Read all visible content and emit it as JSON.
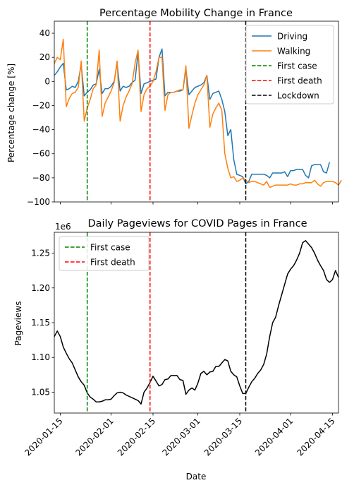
{
  "figure": {
    "xlabel": "Date",
    "colors": {
      "driving": "#1f77b4",
      "walking": "#ff7f0e",
      "first_case": "#008000",
      "first_death": "#ff0000",
      "lockdown": "#000000",
      "pageviews": "#000000"
    }
  },
  "chart_data": [
    {
      "type": "line",
      "title": "Percentage Mobility Change in France",
      "xlabel": "",
      "ylabel": "Percentage change [%]",
      "xlim": [
        "2020-01-13",
        "2020-04-17"
      ],
      "ylim": [
        -100,
        50
      ],
      "yticks": [
        40,
        20,
        0,
        -20,
        -40,
        -60,
        -80,
        -100
      ],
      "xticks": [
        "2020-01-15",
        "2020-02-01",
        "2020-02-15",
        "2020-03-01",
        "2020-03-15",
        "2020-04-01",
        "2020-04-15"
      ],
      "x_tick_labels_shown": false,
      "grid": false,
      "legend_position": "upper right",
      "x_start": "2020-01-13",
      "series": [
        {
          "name": "Driving",
          "color": "#1f77b4",
          "values": [
            5,
            8,
            12,
            15,
            -7,
            -6,
            -4,
            -5,
            0,
            14,
            -12,
            -9,
            -7,
            -3,
            -2,
            10,
            -10,
            -6,
            -6,
            -4,
            0,
            15,
            -8,
            -4,
            -5,
            -4,
            -1,
            1,
            24,
            -10,
            -2,
            -1,
            0,
            1,
            2,
            20,
            27,
            -12,
            -9,
            -9,
            -9,
            -8,
            -8,
            -7,
            10,
            -11,
            -8,
            -5,
            -4,
            -3,
            -1,
            5,
            -15,
            -10,
            -9,
            -8,
            -15,
            -25,
            -45,
            -40,
            -65,
            -77,
            -78,
            -79,
            -85,
            -83,
            -77,
            -77,
            -77,
            -77,
            -77,
            -78,
            -80,
            -76,
            -76,
            -76,
            -76,
            -75,
            -79,
            -74,
            -74,
            -73,
            -73,
            -73,
            -78,
            -80,
            -70,
            -69,
            -69,
            -69,
            -75,
            -76,
            -67
          ]
        },
        {
          "name": "Walking",
          "color": "#ff7f0e",
          "values": [
            15,
            20,
            18,
            35,
            -21,
            -14,
            -10,
            -9,
            -5,
            17,
            -33,
            -22,
            -15,
            -6,
            -3,
            26,
            -29,
            -18,
            -13,
            -8,
            -1,
            17,
            -33,
            -20,
            -13,
            -8,
            -2,
            15,
            26,
            -25,
            -11,
            -6,
            -4,
            0,
            8,
            20,
            20,
            -24,
            -11,
            -9,
            -9,
            -8,
            -7,
            -7,
            13,
            -39,
            -28,
            -18,
            -11,
            -7,
            -3,
            5,
            -38,
            -27,
            -22,
            -18,
            -24,
            -60,
            -72,
            -80,
            -79,
            -83,
            -82,
            -80,
            -82,
            -84,
            -83,
            -83,
            -84,
            -85,
            -86,
            -83,
            -88,
            -87,
            -86,
            -86,
            -86,
            -86,
            -86,
            -85,
            -86,
            -86,
            -85,
            -85,
            -84,
            -84,
            -84,
            -82,
            -85,
            -87,
            -84,
            -83,
            -83,
            -83,
            -84,
            -86,
            -82
          ]
        },
        {
          "name": "First case",
          "type": "vline",
          "x": "2020-01-24",
          "color": "#008000",
          "dash": true
        },
        {
          "name": "First death",
          "type": "vline",
          "x": "2020-02-14",
          "color": "#ff0000",
          "dash": true
        },
        {
          "name": "Lockdown",
          "type": "vline",
          "x": "2020-03-17",
          "color": "#000000",
          "dash": true
        }
      ]
    },
    {
      "type": "line",
      "title": "Daily Pageviews for COVID Pages in France",
      "xlabel": "Date",
      "ylabel": "Pageviews",
      "offset_label": "1e6",
      "xlim": [
        "2020-01-13",
        "2020-04-17"
      ],
      "ylim": [
        1.02,
        1.28
      ],
      "yticks": [
        1.05,
        1.1,
        1.15,
        1.2,
        1.25
      ],
      "xticks": [
        "2020-01-15",
        "2020-02-01",
        "2020-02-15",
        "2020-03-01",
        "2020-03-15",
        "2020-04-01",
        "2020-04-15"
      ],
      "grid": false,
      "legend_position": "upper left",
      "x_start": "2020-01-13",
      "series": [
        {
          "name": "",
          "color": "#000000",
          "values": [
            1.13,
            1.138,
            1.13,
            1.115,
            1.106,
            1.098,
            1.092,
            1.082,
            1.072,
            1.065,
            1.06,
            1.049,
            1.043,
            1.04,
            1.036,
            1.036,
            1.037,
            1.039,
            1.039,
            1.04,
            1.045,
            1.049,
            1.05,
            1.049,
            1.046,
            1.044,
            1.042,
            1.04,
            1.038,
            1.033,
            1.05,
            1.056,
            1.064,
            1.073,
            1.066,
            1.059,
            1.061,
            1.068,
            1.069,
            1.074,
            1.074,
            1.074,
            1.068,
            1.067,
            1.047,
            1.053,
            1.056,
            1.053,
            1.063,
            1.077,
            1.08,
            1.075,
            1.079,
            1.08,
            1.087,
            1.087,
            1.092,
            1.097,
            1.095,
            1.08,
            1.075,
            1.072,
            1.059,
            1.048,
            1.048,
            1.057,
            1.065,
            1.07,
            1.077,
            1.082,
            1.09,
            1.105,
            1.13,
            1.15,
            1.158,
            1.175,
            1.19,
            1.205,
            1.22,
            1.227,
            1.232,
            1.24,
            1.25,
            1.265,
            1.268,
            1.263,
            1.258,
            1.25,
            1.24,
            1.232,
            1.225,
            1.212,
            1.208,
            1.212,
            1.225,
            1.215
          ]
        },
        {
          "name": "First case",
          "type": "vline",
          "x": "2020-01-24",
          "color": "#008000",
          "dash": true
        },
        {
          "name": "First death",
          "type": "vline",
          "x": "2020-02-14",
          "color": "#ff0000",
          "dash": true
        },
        {
          "name": "",
          "type": "vline",
          "x": "2020-03-17",
          "color": "#000000",
          "dash": true
        }
      ]
    }
  ]
}
